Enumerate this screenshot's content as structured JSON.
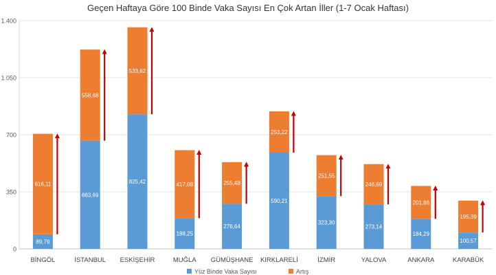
{
  "chart_data": {
    "type": "bar",
    "stacked": true,
    "title": "Geçen Haftaya Göre 100 Binde Vaka Sayısı En Çok Artan İller (1-7 Ocak Haftası)",
    "categories": [
      "BİNGÖL",
      "İSTANBUL",
      "ESKİŞEHİR",
      "MUĞLA",
      "GÜMÜŞHANE",
      "KIRKLARELİ",
      "İZMİR",
      "YALOVA",
      "ANKARA",
      "KARABÜK"
    ],
    "series": [
      {
        "name": "Yüz Binde Vaka Sayısı",
        "color": "#5b9bd5",
        "values": [
          89.79,
          663.69,
          825.42,
          188.25,
          276.64,
          590.21,
          323.3,
          273.14,
          184.29,
          100.57
        ],
        "labels": [
          "89,79",
          "663,69",
          "825,42",
          "188,25",
          "276,64",
          "590,21",
          "323,30",
          "273,14",
          "184,29",
          "100,57"
        ]
      },
      {
        "name": "Artış",
        "color": "#ed7d31",
        "values": [
          616.11,
          558.68,
          533.62,
          417.08,
          255.48,
          253.22,
          251.55,
          246.69,
          201.86,
          195.39
        ],
        "labels": [
          "616,11",
          "558,68",
          "533,62",
          "417,08",
          "255,48",
          "253,22",
          "251,55",
          "246,69",
          "201,86",
          "195,39"
        ]
      }
    ],
    "y_ticks": [
      0,
      350,
      700,
      1050,
      1400
    ],
    "y_tick_labels": [
      "0",
      "350",
      "700",
      "1.050",
      "1.400"
    ],
    "ylim": [
      0,
      1400
    ],
    "grid": true,
    "legend_position": "bottom",
    "arrow_color": "#c00000"
  }
}
